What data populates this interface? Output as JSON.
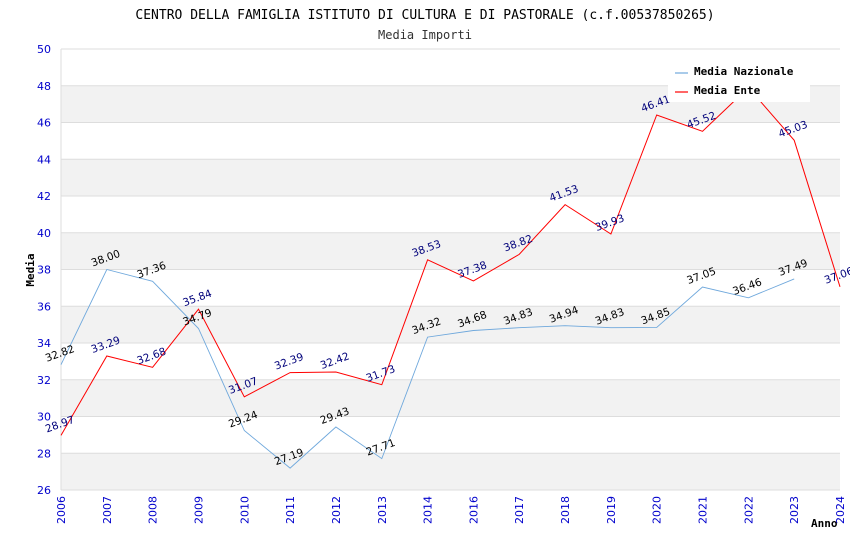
{
  "chart_data": {
    "type": "line",
    "title": "CENTRO DELLA FAMIGLIA ISTITUTO DI CULTURA E DI PASTORALE (c.f.00537850265)",
    "subtitle": "Media Importi",
    "xlabel": "Anno",
    "ylabel": "Media",
    "categories": [
      "2006",
      "2007",
      "2008",
      "2009",
      "2010",
      "2011",
      "2012",
      "2013",
      "2014",
      "2016",
      "2017",
      "2018",
      "2019",
      "2020",
      "2021",
      "2022",
      "2023",
      "2024"
    ],
    "ylim": [
      26,
      50
    ],
    "yticks": [
      "26",
      "28",
      "30",
      "32",
      "34",
      "36",
      "38",
      "40",
      "42",
      "44",
      "46",
      "48",
      "50"
    ],
    "grid": true,
    "legend_position": "top-right",
    "series": [
      {
        "name": "Media Nazionale",
        "color": "#6fa8dc",
        "values": [
          32.82,
          38.0,
          37.36,
          34.79,
          29.24,
          27.19,
          29.43,
          27.71,
          34.32,
          34.68,
          34.83,
          34.94,
          34.83,
          34.85,
          37.05,
          36.46,
          37.49,
          null
        ],
        "labels": [
          "32.82",
          "38.00",
          "37.36",
          "34.79",
          "29.24",
          "27.19",
          "29.43",
          "27.71",
          "34.32",
          "34.68",
          "34.83",
          "34.94",
          "34.83",
          "34.85",
          "37.05",
          "36.46",
          "37.49",
          ""
        ]
      },
      {
        "name": "Media Ente",
        "color": "#ff0000",
        "values": [
          28.97,
          33.29,
          32.68,
          35.84,
          31.07,
          32.39,
          32.42,
          31.73,
          38.53,
          37.38,
          38.82,
          41.53,
          39.93,
          46.41,
          45.52,
          47.9,
          45.03,
          37.06
        ],
        "labels": [
          "28.97",
          "33.29",
          "32.68",
          "35.84",
          "31.07",
          "32.39",
          "32.42",
          "31.73",
          "38.53",
          "37.38",
          "38.82",
          "41.53",
          "39.93",
          "46.41",
          "45.52",
          "",
          "45.03",
          "37.06"
        ]
      }
    ]
  }
}
